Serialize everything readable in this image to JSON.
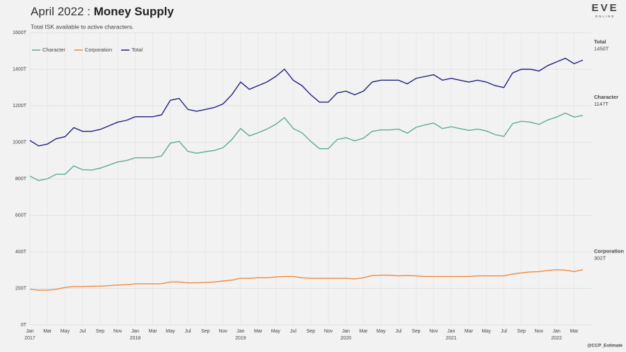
{
  "chart_data": {
    "type": "line",
    "title_prefix": "April 2022 :",
    "title": "Money Supply",
    "subtitle": "Total ISK available to active characters.",
    "logo": "EVE",
    "logo_sub": "ONLINE",
    "credit": "@CCP_Estimate",
    "x": [
      "2017-01",
      "2017-02",
      "2017-03",
      "2017-04",
      "2017-05",
      "2017-06",
      "2017-07",
      "2017-08",
      "2017-09",
      "2017-10",
      "2017-11",
      "2017-12",
      "2018-01",
      "2018-02",
      "2018-03",
      "2018-04",
      "2018-05",
      "2018-06",
      "2018-07",
      "2018-08",
      "2018-09",
      "2018-10",
      "2018-11",
      "2018-12",
      "2019-01",
      "2019-02",
      "2019-03",
      "2019-04",
      "2019-05",
      "2019-06",
      "2019-07",
      "2019-08",
      "2019-09",
      "2019-10",
      "2019-11",
      "2019-12",
      "2020-01",
      "2020-02",
      "2020-03",
      "2020-04",
      "2020-05",
      "2020-06",
      "2020-07",
      "2020-08",
      "2020-09",
      "2020-10",
      "2020-11",
      "2020-12",
      "2021-01",
      "2021-02",
      "2021-03",
      "2021-04",
      "2021-05",
      "2021-06",
      "2021-07",
      "2021-08",
      "2021-09",
      "2021-10",
      "2021-11",
      "2021-12",
      "2022-01",
      "2022-02",
      "2022-03",
      "2022-04"
    ],
    "series": [
      {
        "name": "Character",
        "color": "#5aab9a",
        "last_label": "1147T",
        "values": [
          815,
          790,
          800,
          825,
          825,
          870,
          850,
          848,
          858,
          875,
          892,
          900,
          915,
          915,
          915,
          925,
          995,
          1005,
          950,
          940,
          948,
          955,
          970,
          1015,
          1075,
          1035,
          1052,
          1072,
          1098,
          1135,
          1075,
          1052,
          1005,
          965,
          965,
          1015,
          1025,
          1008,
          1022,
          1060,
          1068,
          1068,
          1072,
          1050,
          1082,
          1095,
          1105,
          1075,
          1085,
          1075,
          1065,
          1072,
          1062,
          1042,
          1032,
          1102,
          1115,
          1110,
          1098,
          1122,
          1138,
          1160,
          1138,
          1147
        ]
      },
      {
        "name": "Corporation",
        "color": "#f0893b",
        "last_label": "302T",
        "values": [
          195,
          190,
          190,
          195,
          205,
          210,
          210,
          212,
          212,
          215,
          218,
          220,
          225,
          225,
          225,
          225,
          235,
          235,
          230,
          230,
          232,
          235,
          240,
          245,
          255,
          255,
          258,
          258,
          262,
          265,
          265,
          258,
          255,
          255,
          255,
          255,
          255,
          252,
          258,
          270,
          272,
          272,
          268,
          270,
          268,
          265,
          265,
          265,
          265,
          265,
          265,
          268,
          268,
          268,
          268,
          278,
          285,
          290,
          292,
          298,
          302,
          300,
          292,
          302
        ]
      },
      {
        "name": "Total",
        "color": "#1f1f80",
        "last_label": "1450T",
        "values": [
          1010,
          980,
          990,
          1020,
          1030,
          1080,
          1060,
          1060,
          1070,
          1090,
          1110,
          1120,
          1140,
          1140,
          1140,
          1150,
          1230,
          1240,
          1180,
          1170,
          1180,
          1190,
          1210,
          1260,
          1330,
          1290,
          1310,
          1330,
          1360,
          1400,
          1340,
          1310,
          1260,
          1220,
          1220,
          1270,
          1280,
          1260,
          1280,
          1330,
          1340,
          1340,
          1340,
          1320,
          1350,
          1360,
          1370,
          1340,
          1350,
          1340,
          1330,
          1340,
          1330,
          1310,
          1300,
          1380,
          1400,
          1400,
          1390,
          1420,
          1440,
          1460,
          1430,
          1450
        ]
      }
    ],
    "ylim": [
      0,
      1600
    ],
    "yticks": [
      {
        "value": 0,
        "label": "0T"
      },
      {
        "value": 200,
        "label": "200T"
      },
      {
        "value": 400,
        "label": "400T"
      },
      {
        "value": 600,
        "label": "600T"
      },
      {
        "value": 800,
        "label": "800T"
      },
      {
        "value": 1000,
        "label": "1000T"
      },
      {
        "value": 1200,
        "label": "1200T"
      },
      {
        "value": 1400,
        "label": "1400T"
      },
      {
        "value": 1600,
        "label": "1600T"
      }
    ],
    "xlim": [
      "2017-01",
      "2022-04"
    ],
    "xticks": [
      {
        "value": "2017-01",
        "label": "Jan"
      },
      {
        "value": "2017-03",
        "label": "Mar"
      },
      {
        "value": "2017-05",
        "label": "May"
      },
      {
        "value": "2017-07",
        "label": "Jul"
      },
      {
        "value": "2017-09",
        "label": "Sep"
      },
      {
        "value": "2017-11",
        "label": "Nov"
      },
      {
        "value": "2018-01",
        "label": "Jan"
      },
      {
        "value": "2018-03",
        "label": "Mar"
      },
      {
        "value": "2018-05",
        "label": "May"
      },
      {
        "value": "2018-07",
        "label": "Jul"
      },
      {
        "value": "2018-09",
        "label": "Sep"
      },
      {
        "value": "2018-11",
        "label": "Nov"
      },
      {
        "value": "2019-01",
        "label": "Jan"
      },
      {
        "value": "2019-03",
        "label": "Mar"
      },
      {
        "value": "2019-05",
        "label": "May"
      },
      {
        "value": "2019-07",
        "label": "Jul"
      },
      {
        "value": "2019-09",
        "label": "Sep"
      },
      {
        "value": "2019-11",
        "label": "Nov"
      },
      {
        "value": "2020-01",
        "label": "Jan"
      },
      {
        "value": "2020-03",
        "label": "Mar"
      },
      {
        "value": "2020-05",
        "label": "May"
      },
      {
        "value": "2020-07",
        "label": "Jul"
      },
      {
        "value": "2020-09",
        "label": "Sep"
      },
      {
        "value": "2020-11",
        "label": "Nov"
      },
      {
        "value": "2021-01",
        "label": "Jan"
      },
      {
        "value": "2021-03",
        "label": "Mar"
      },
      {
        "value": "2021-05",
        "label": "May"
      },
      {
        "value": "2021-07",
        "label": "Jul"
      },
      {
        "value": "2021-09",
        "label": "Sep"
      },
      {
        "value": "2021-11",
        "label": "Nov"
      },
      {
        "value": "2022-01",
        "label": "Jan"
      },
      {
        "value": "2022-03",
        "label": "Mar"
      }
    ],
    "xtick_years": [
      {
        "value": "2017-01",
        "label": "2017"
      },
      {
        "value": "2018-01",
        "label": "2018"
      },
      {
        "value": "2019-01",
        "label": "2019"
      },
      {
        "value": "2020-01",
        "label": "2020"
      },
      {
        "value": "2021-01",
        "label": "2021"
      },
      {
        "value": "2022-01",
        "label": "2022"
      }
    ],
    "grid": true,
    "legend": "top-left"
  }
}
